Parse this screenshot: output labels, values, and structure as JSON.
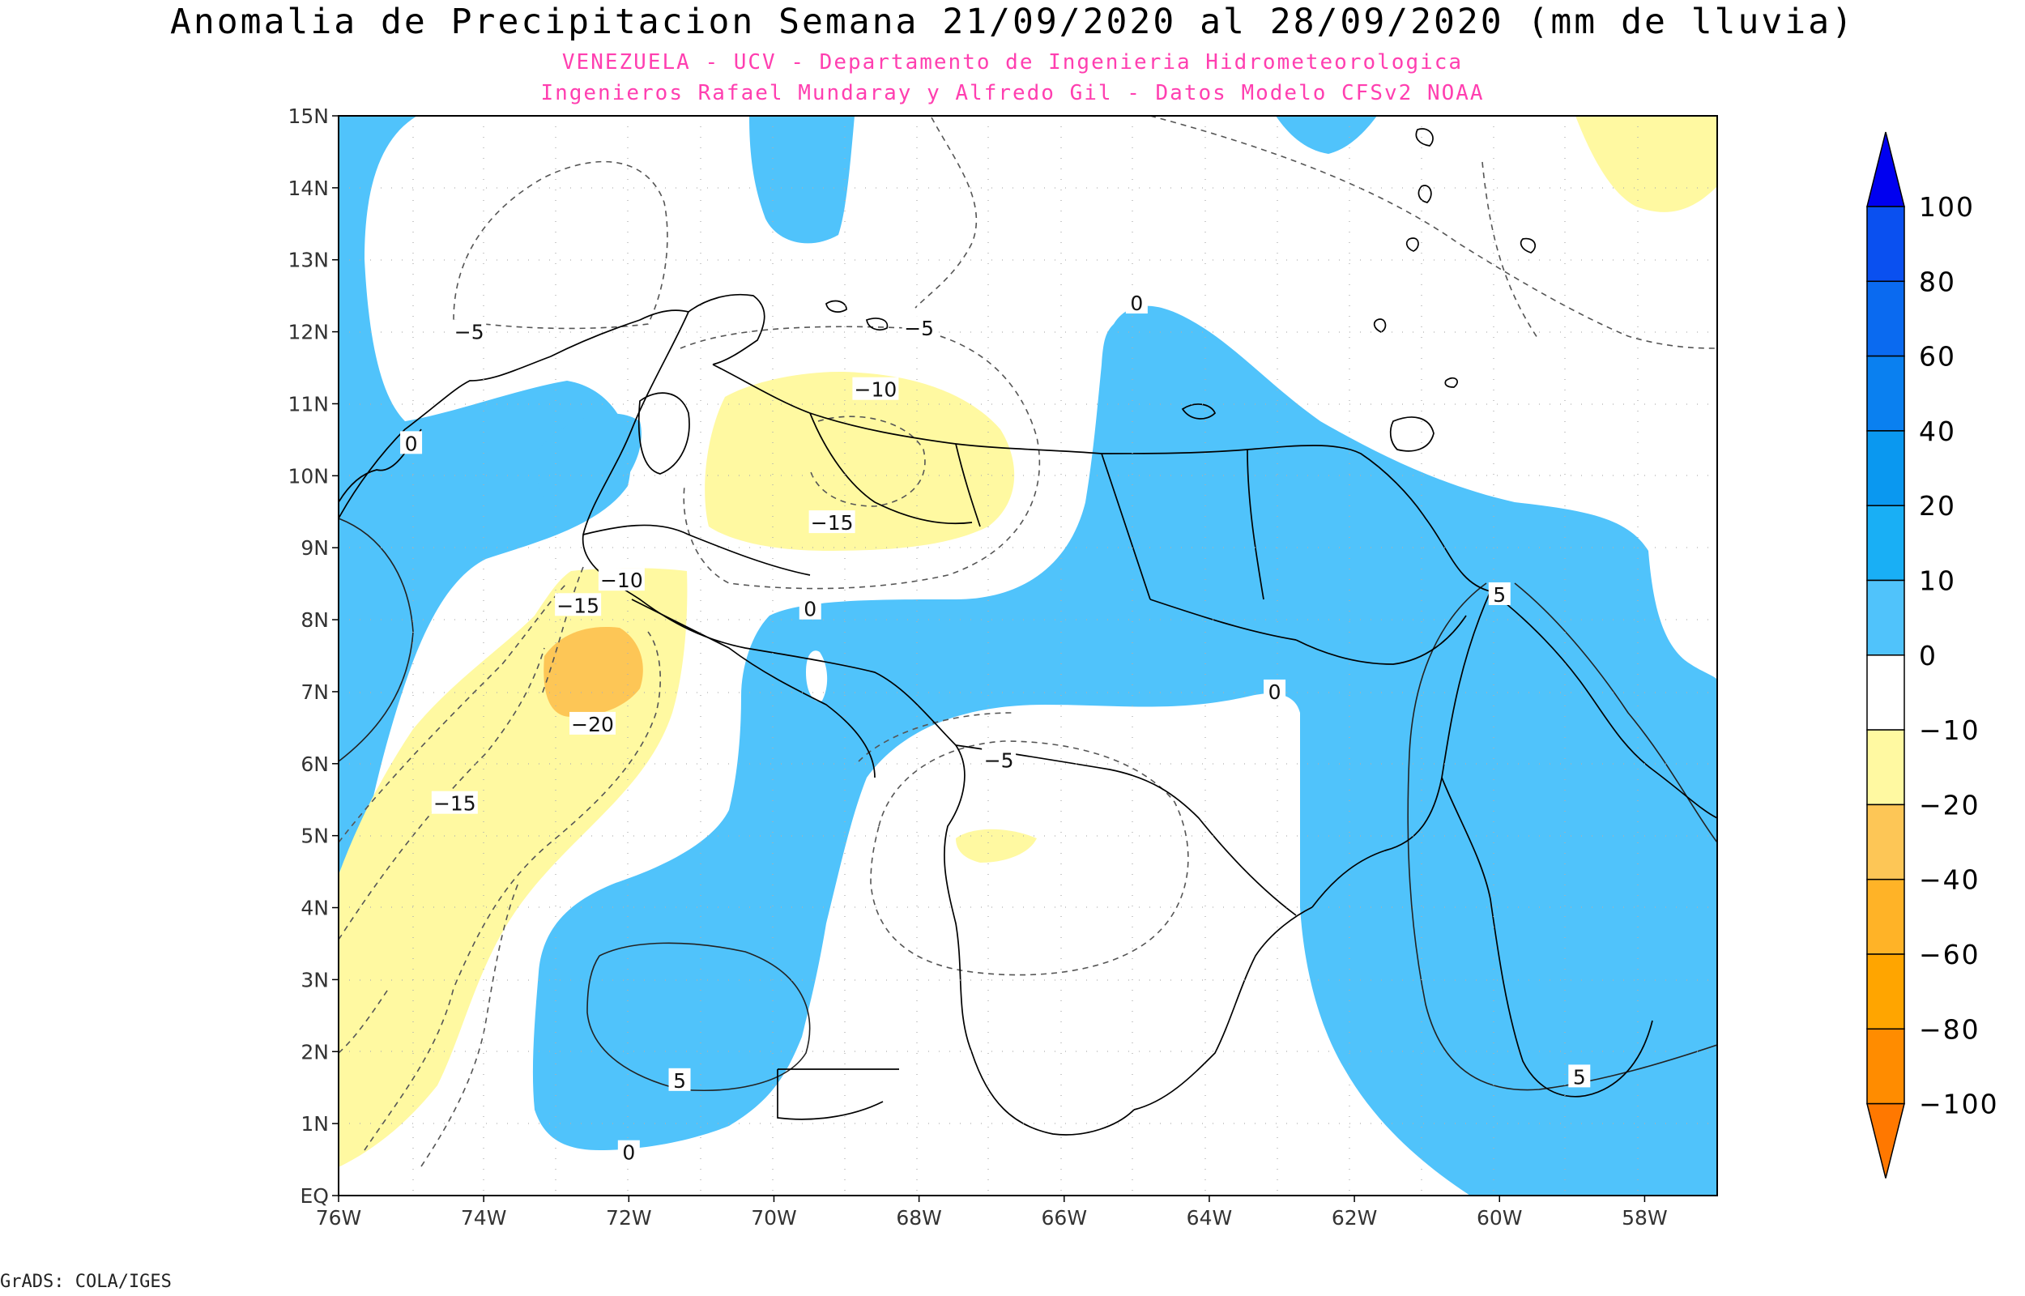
{
  "header": {
    "title": "Anomalia de Precipitacion Semana 21/09/2020 al 28/09/2020 (mm de lluvia)",
    "subtitle_line1": "VENEZUELA - UCV - Departamento de Ingenieria Hidrometeorologica",
    "subtitle_line2": "Ingenieros Rafael Mundaray y Alfredo Gil - Datos Modelo CFSv2 NOAA"
  },
  "footer": {
    "credit": "GrADS: COLA/IGES"
  },
  "map": {
    "region": "Venezuela",
    "lon_ticks": [
      "76W",
      "74W",
      "72W",
      "70W",
      "68W",
      "66W",
      "64W",
      "62W",
      "60W",
      "58W"
    ],
    "lat_ticks": [
      "EQ",
      "1N",
      "2N",
      "3N",
      "4N",
      "5N",
      "6N",
      "7N",
      "8N",
      "9N",
      "10N",
      "11N",
      "12N",
      "13N",
      "14N",
      "15N"
    ],
    "lon_range": [
      -76,
      -57
    ],
    "lat_range": [
      0,
      15
    ],
    "contour_labels": [
      {
        "text": "0",
        "lon": -75,
        "lat": 10.45
      },
      {
        "text": "-5",
        "lon": -74.2,
        "lat": 12.0
      },
      {
        "text": "-5",
        "lon": -68.0,
        "lat": 12.05
      },
      {
        "text": "-10",
        "lon": -68.6,
        "lat": 11.2
      },
      {
        "text": "-15",
        "lon": -69.2,
        "lat": 9.35
      },
      {
        "text": "0",
        "lon": -65.0,
        "lat": 12.4
      },
      {
        "text": "-10",
        "lon": -72.1,
        "lat": 8.55
      },
      {
        "text": "-15",
        "lon": -72.7,
        "lat": 8.2
      },
      {
        "text": "0",
        "lon": -69.5,
        "lat": 8.15
      },
      {
        "text": "-20",
        "lon": -72.5,
        "lat": 6.55
      },
      {
        "text": "-15",
        "lon": -74.4,
        "lat": 5.45
      },
      {
        "text": "-5",
        "lon": -66.9,
        "lat": 6.05
      },
      {
        "text": "0",
        "lon": -63.1,
        "lat": 7.0
      },
      {
        "text": "5",
        "lon": -60.0,
        "lat": 8.35
      },
      {
        "text": "5",
        "lon": -71.3,
        "lat": 1.6
      },
      {
        "text": "0",
        "lon": -72.0,
        "lat": 0.6
      },
      {
        "text": "5",
        "lon": -58.9,
        "lat": 1.65
      }
    ]
  },
  "colorbar": {
    "levels": [
      "100",
      "80",
      "60",
      "40",
      "20",
      "10",
      "0",
      "-10",
      "-20",
      "-40",
      "-60",
      "-80",
      "-100"
    ],
    "colors": {
      "gt100": "#0000f0",
      "80_100": "#0a50f0",
      "60_80": "#0a6af0",
      "40_60": "#0a80f0",
      "20_40": "#0a98f0",
      "10_20": "#19aff5",
      "0_10": "#50c3fb",
      "m10_0": "#ffffff",
      "m20_m10": "#fff9a1",
      "m40_m20": "#fdc656",
      "m60_m40": "#ffb327",
      "m80_m60": "#ffa500",
      "m100_m80": "#ff8c00",
      "lt_m100": "#ff7800"
    }
  }
}
